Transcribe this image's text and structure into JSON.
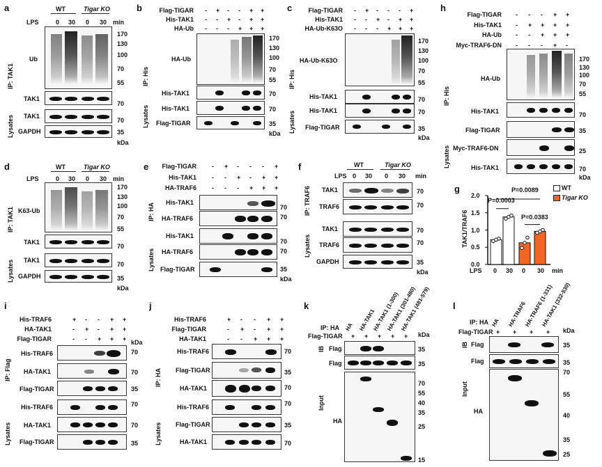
{
  "panels": [
    "a",
    "b",
    "c",
    "d",
    "e",
    "f",
    "g",
    "h",
    "i",
    "j",
    "k",
    "l"
  ],
  "common": {
    "minus": "-",
    "plus": "+",
    "kda": "kDa",
    "min": "min",
    "lps": "LPS",
    "wt": "WT",
    "ko": "Tigar KO",
    "ko_short": "KO",
    "tigar_i": "Tigar"
  },
  "a": {
    "times": [
      "0",
      "30",
      "0",
      "30"
    ],
    "ip": "IP: TAK1",
    "lys": "Lysates",
    "rows": [
      "Ub",
      "TAK1",
      "TAK1",
      "GAPDH"
    ],
    "mw": [
      "170",
      "130",
      "100",
      "70",
      "55",
      "70",
      "70",
      "35"
    ]
  },
  "b": {
    "cond": [
      "Flag-TIGAR",
      "His-TAK1",
      "HA-Ub"
    ],
    "ip": "IP: His",
    "lys": "Lysates",
    "rows": [
      "HA-Ub",
      "His-TAK1",
      "His-TAK1",
      "Flag-TIGAR"
    ],
    "mw": [
      "170",
      "130",
      "100",
      "70",
      "55",
      "70",
      "70",
      "35"
    ]
  },
  "c": {
    "cond": [
      "Flag-TIGAR",
      "His-TAK1",
      "HA-Ub-K63O"
    ],
    "ip": "IP: His",
    "lys": "Lysates",
    "rows": [
      "HA-Ub-K63O",
      "His-TAK1",
      "His-TAK1",
      "Flag-TIGAR"
    ],
    "mw": [
      "170",
      "130",
      "100",
      "70",
      "55",
      "70",
      "70",
      "35"
    ]
  },
  "d": {
    "times": [
      "0",
      "30",
      "0",
      "30"
    ],
    "ip": "IP: TAK1",
    "lys": "Lysates",
    "rows": [
      "K63-Ub",
      "TAK1",
      "TAK1",
      "GAPDH"
    ],
    "mw": [
      "170",
      "130",
      "100",
      "70",
      "55",
      "70",
      "70",
      "35"
    ]
  },
  "e": {
    "cond": [
      "Flag-TIGAR",
      "His-TAK1",
      "HA-TRAF6"
    ],
    "ip": "IP: HA",
    "lys": "Lysates",
    "rows": [
      "His-TAK1",
      "HA-TRAF6",
      "His-TAK1",
      "HA-TRAF6",
      "Flag-TIGAR"
    ],
    "mw": [
      "70",
      "70",
      "70",
      "70",
      "35"
    ]
  },
  "f": {
    "times": [
      "0",
      "30",
      "0",
      "30"
    ],
    "ip": "IP: TRAF6",
    "lys": "Lysates",
    "rows": [
      "TAK1",
      "TRAF6",
      "TAK1",
      "TRAF6",
      "GAPDH"
    ],
    "mw": [
      "70",
      "70",
      "70",
      "70",
      "35"
    ]
  },
  "g": {
    "ylabel": "TAK1/TRAF6",
    "p1": "P=0.0003",
    "p2": "P=0.0089",
    "p3": "P=0.0383",
    "legend_wt": "WT",
    "legend_ko": "Tigar KO",
    "xlabel": "LPS",
    "xmin": "min",
    "yticks": [
      "0.0",
      "0.5",
      "1.0",
      "1.5",
      "2.0"
    ]
  },
  "h": {
    "cond": [
      "Flag-TIGAR",
      "His-TAK1",
      "HA-Ub",
      "Myc-TRAF6-DN"
    ],
    "ip": "IP: His",
    "lys": "Lysates",
    "rows": [
      "HA-Ub",
      "His-TAK1",
      "Flag-TIGAR",
      "Myc-TRAF6-DN",
      "His-TAK1"
    ],
    "mw": [
      "170",
      "130",
      "100",
      "70",
      "55",
      "70",
      "35",
      "25",
      "70"
    ]
  },
  "i": {
    "cond": [
      "His-TRAF6",
      "HA-TAK1",
      "Flag-TIGAR"
    ],
    "ip": "IP: Flag",
    "lys": "Lysates",
    "rows": [
      "His-TRAF6",
      "HA-TAK1",
      "Flag-TIGAR",
      "His-TRAF6",
      "HA-TAK1",
      "Flag-TIGAR"
    ],
    "mw": [
      "70",
      "70",
      "35",
      "70",
      "70",
      "35"
    ]
  },
  "j": {
    "cond": [
      "His-TRAF6",
      "Flag-TIGAR",
      "HA-TAK1"
    ],
    "ip": "IP: HA",
    "lys": "Lysates",
    "rows": [
      "His-TRAF6",
      "Flag-TIGAR",
      "HA-TAK1",
      "His-TRAF6",
      "Flag-TIGAR",
      "HA-TAK1"
    ],
    "mw": [
      "70",
      "35",
      "70",
      "70",
      "35",
      "70"
    ]
  },
  "k": {
    "cols": [
      "HA",
      "HA-TAK1",
      "HA-TAK1 (1-300)",
      "HA-TAK1 (301-480)",
      "HA-TAK1 (481-579)"
    ],
    "ip": "IP: HA",
    "flag": "Flag-TIGAR",
    "ib": "IB",
    "input": "Input",
    "rows": [
      "Flag",
      "Flag",
      "HA"
    ],
    "mw": [
      "35",
      "35",
      "70",
      "55",
      "40",
      "35",
      "25",
      "15"
    ]
  },
  "l": {
    "cols": [
      "HA",
      "HA-TRAF6",
      "HA-TRAF6 (1-331)",
      "HA-TAK1 (332-530)"
    ],
    "ip": "IP: HA",
    "flag": "Flag-TIGAR",
    "ib": "IB",
    "input": "Input",
    "rows": [
      "Flag",
      "Flag",
      "HA"
    ],
    "mw": [
      "35",
      "35",
      "70",
      "55",
      "40",
      "35",
      "25"
    ]
  }
}
